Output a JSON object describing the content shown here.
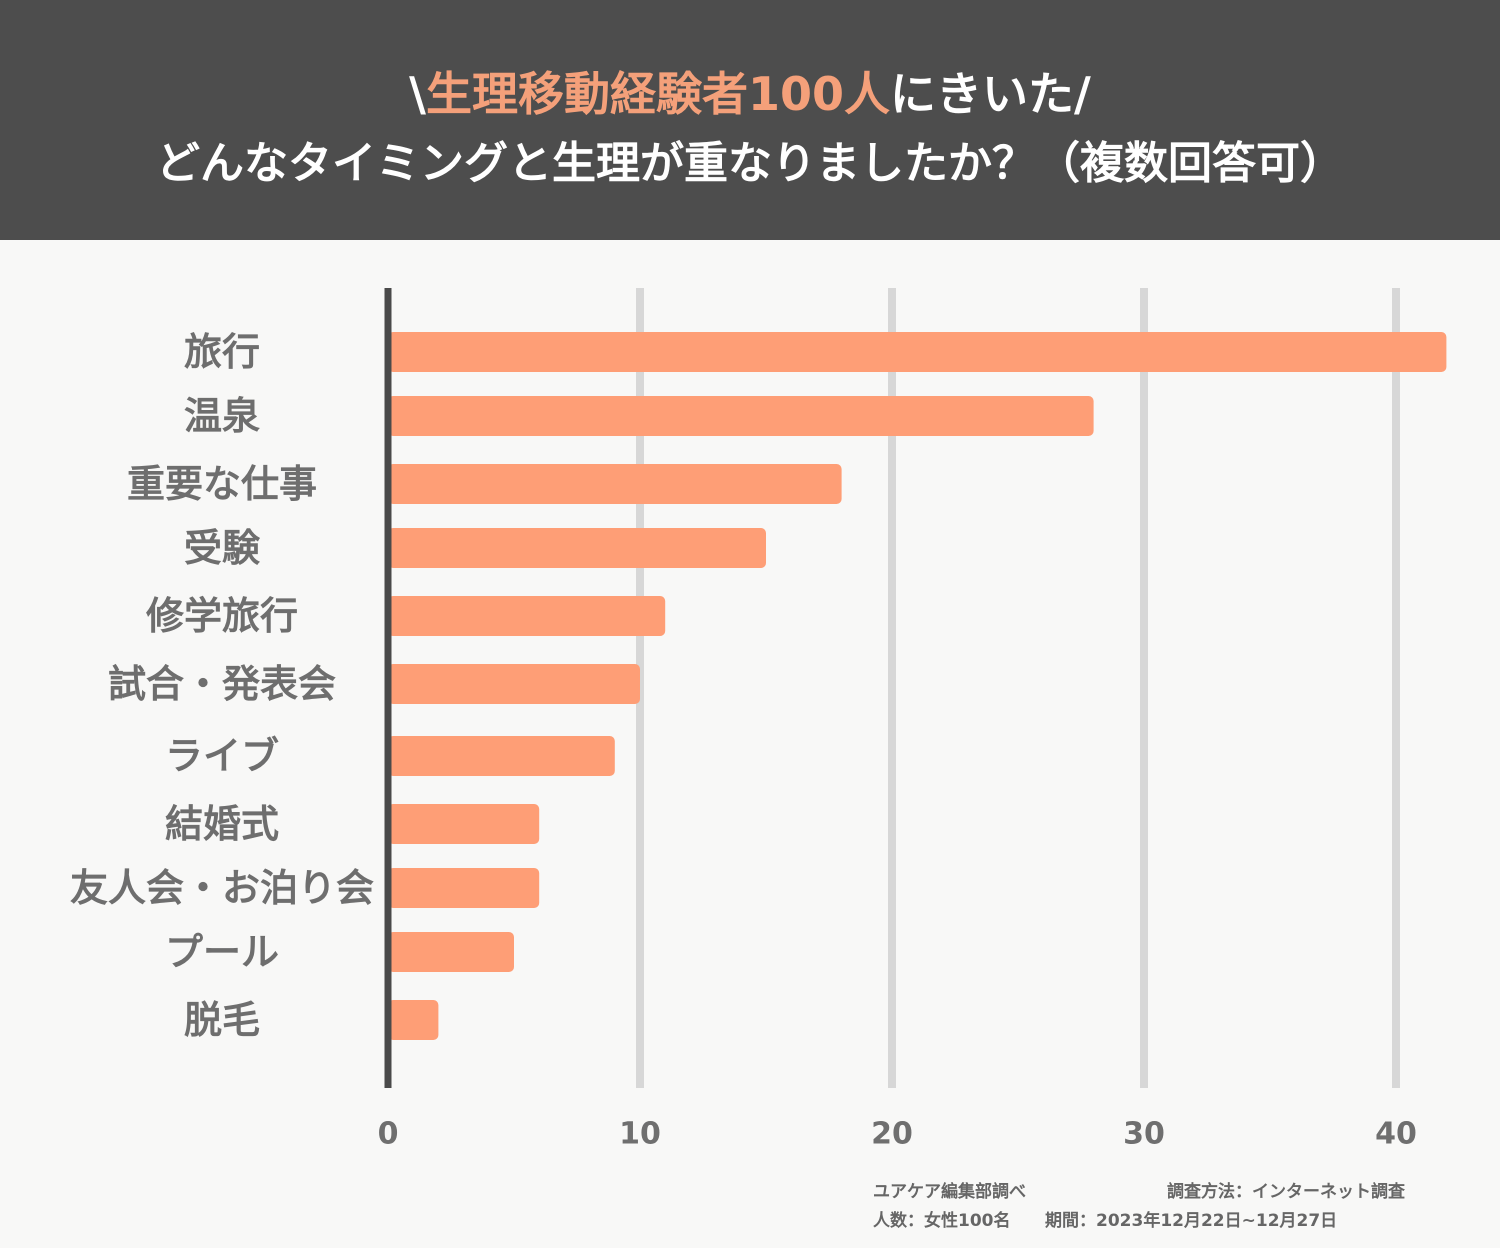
{
  "header": {
    "title_open": "\\",
    "title_highlight": "生理移動経験者100人",
    "title_rest": "にきいた/",
    "subtitle": "どんなタイミングと生理が重なりましたか？（複数回答可）"
  },
  "chart_data": {
    "type": "bar",
    "orientation": "horizontal",
    "categories": [
      "旅行",
      "温泉",
      "重要な仕事",
      "受験",
      "修学旅行",
      "試合・発表会",
      "ライブ",
      "結婚式",
      "友人会・お泊り会",
      "プール",
      "脱毛"
    ],
    "values": [
      42,
      28,
      18,
      15,
      11,
      10,
      9,
      6,
      6,
      5,
      2
    ],
    "xlim": [
      0,
      42
    ],
    "ticks": [
      0,
      10,
      20,
      30,
      40
    ],
    "tick_labels": [
      "0",
      "10",
      "20",
      "30",
      "40"
    ],
    "grid": true,
    "bar_color": "#fe9e76"
  },
  "footer": {
    "source": "ユアケア編集部調べ",
    "method": "調査方法：インターネット調査",
    "sample": "人数：女性100名",
    "period": "期間：2023年12月22日~12月27日"
  },
  "colors": {
    "header_bg": "#4d4d4d",
    "highlight": "#f4a07a",
    "bar": "#fe9e76",
    "grid": "#d7d7d7",
    "axis": "#4a4a4a"
  }
}
